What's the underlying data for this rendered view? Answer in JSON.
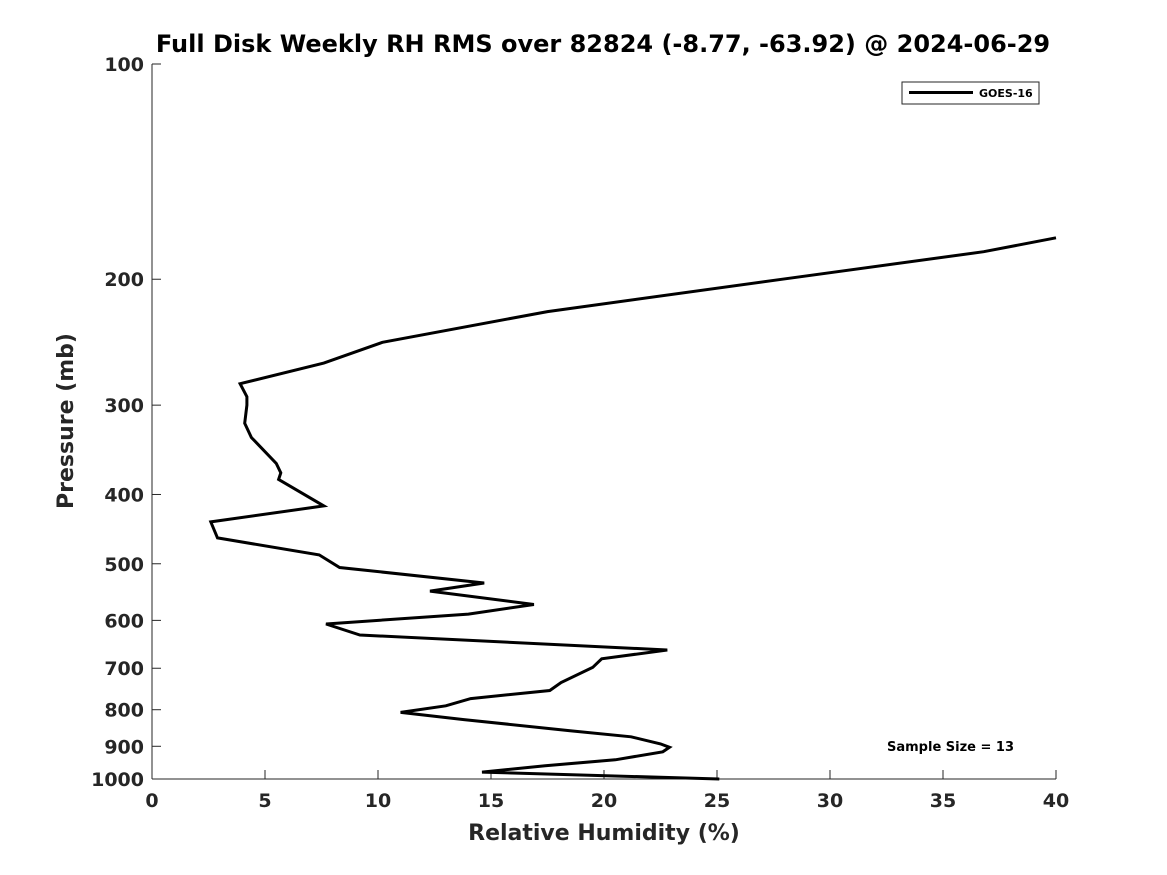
{
  "chart_data": {
    "type": "line",
    "title": "Full Disk Weekly RH RMS over 82824 (-8.77, -63.92) @ 2024-06-29",
    "xlabel": "Relative Humidity (%)",
    "ylabel": "Pressure (mb)",
    "xlim": [
      0,
      40
    ],
    "ylim": [
      100,
      1000
    ],
    "y_scale": "log",
    "y_reversed": true,
    "xticks": [
      "0",
      "5",
      "10",
      "15",
      "20",
      "25",
      "30",
      "35",
      "40"
    ],
    "yticks": [
      "100",
      "200",
      "300",
      "400",
      "500",
      "600",
      "700",
      "800",
      "900",
      "1000"
    ],
    "grid": false,
    "legend_position": "top-right",
    "annotation": "Sample Size = 13",
    "series": [
      {
        "name": "GOES-16",
        "color": "#000000",
        "x": [
          40.0,
          36.8,
          27.9,
          17.5,
          10.2,
          7.6,
          3.9,
          4.2,
          4.2,
          4.1,
          4.4,
          5.5,
          5.7,
          5.6,
          7.6,
          2.6,
          2.9,
          7.4,
          8.3,
          14.7,
          12.3,
          16.9,
          14.0,
          7.7,
          9.2,
          22.8,
          19.9,
          19.5,
          18.1,
          17.6,
          14.1,
          13.0,
          11.0,
          13.8,
          18.5,
          21.2,
          22.5,
          22.9,
          22.6,
          20.5,
          17.4,
          14.6,
          25.1
        ],
        "y": [
          175,
          183,
          200,
          222,
          245,
          262,
          280,
          292,
          300,
          318,
          333,
          362,
          373,
          381,
          415,
          437,
          460,
          486,
          506,
          532,
          546,
          570,
          588,
          607,
          629,
          660,
          679,
          698,
          733,
          752,
          772,
          790,
          807,
          826,
          856,
          873,
          893,
          903,
          916,
          940,
          958,
          978,
          1000
        ]
      }
    ]
  }
}
